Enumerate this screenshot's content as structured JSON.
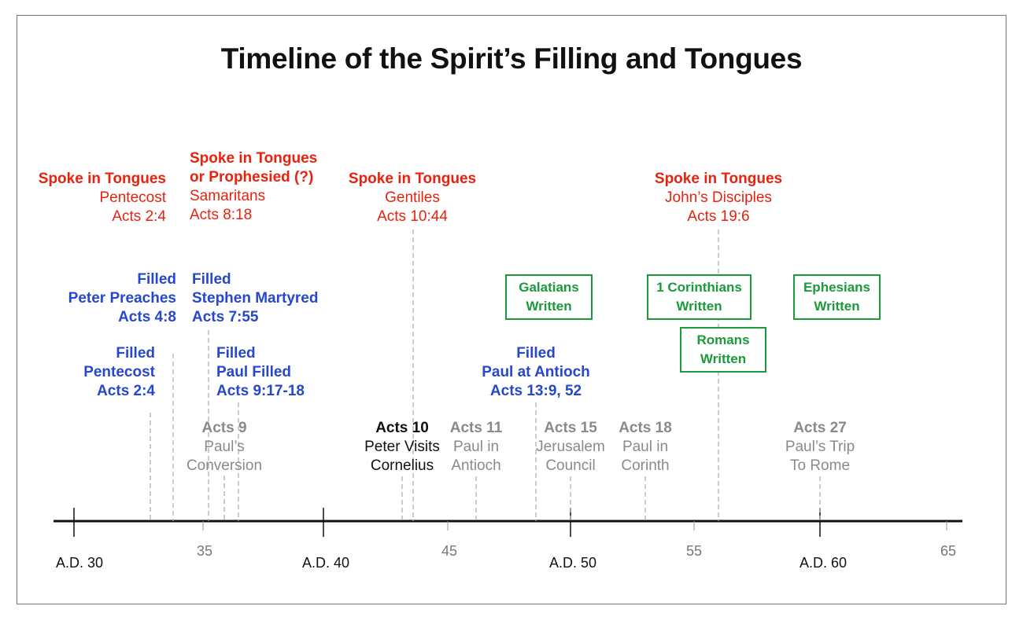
{
  "title": "Timeline of the Spirit’s Filling and Tongues",
  "axis": {
    "major_labels": [
      "A.D. 30",
      "A.D. 40",
      "A.D. 50",
      "A.D. 60"
    ],
    "minor_labels": [
      "35",
      "45",
      "55",
      "65"
    ]
  },
  "tongues": [
    {
      "heading": "Spoke in Tongues",
      "group": "Pentecost",
      "ref": "Acts 2:4"
    },
    {
      "heading_1": "Spoke in Tongues",
      "heading_2": "or Prophesied (?)",
      "group": "Samaritans",
      "ref": "Acts 8:18"
    },
    {
      "heading": "Spoke in Tongues",
      "group": "Gentiles",
      "ref": "Acts 10:44"
    },
    {
      "heading": "Spoke in Tongues",
      "group": "John’s Disciples",
      "ref": "Acts 19:6"
    }
  ],
  "filled": [
    {
      "heading": "Filled",
      "event": "Peter Preaches",
      "ref": "Acts 4:8"
    },
    {
      "heading": "Filled",
      "event": "Stephen Martyred",
      "ref": "Acts 7:55"
    },
    {
      "heading": "Filled",
      "event": "Pentecost",
      "ref": "Acts 2:4"
    },
    {
      "heading": "Filled",
      "event": "Paul Filled",
      "ref": "Acts 9:17-18"
    },
    {
      "heading": "Filled",
      "event": "Paul at Antioch",
      "ref": "Acts 13:9, 52"
    }
  ],
  "letters": [
    {
      "line1": "Galatians",
      "line2": "Written"
    },
    {
      "line1": "1 Corinthians",
      "line2": "Written"
    },
    {
      "line1": "Ephesians",
      "line2": "Written"
    },
    {
      "line1": "Romans",
      "line2": "Written"
    }
  ],
  "events": [
    {
      "ref": "Acts 9",
      "line1": "Paul’s",
      "line2": "Conversion"
    },
    {
      "ref": "Acts 10",
      "line1": "Peter Visits",
      "line2": "Cornelius"
    },
    {
      "ref": "Acts 11",
      "line1": "Paul in",
      "line2": "Antioch"
    },
    {
      "ref": "Acts 15",
      "line1": "Jerusalem",
      "line2": "Council"
    },
    {
      "ref": "Acts 18",
      "line1": "Paul in",
      "line2": "Corinth"
    },
    {
      "ref": "Acts 27",
      "line1": "Paul’s Trip",
      "line2": "To Rome"
    }
  ],
  "colors": {
    "tongues": "#e8220e",
    "filled": "#2747cc",
    "letters": "#1a9a3a",
    "event_muted": "#8a8a8a",
    "event_highlight": "#111111"
  }
}
